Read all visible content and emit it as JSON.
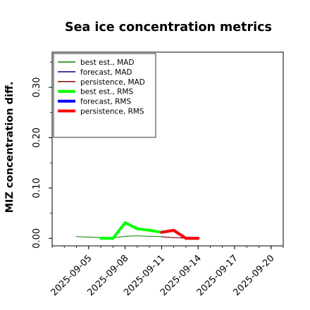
{
  "chart_data": {
    "type": "line",
    "title": "Sea ice concentration metrics",
    "xlabel": "",
    "ylabel": "MIZ concentration diff.",
    "ylim": [
      -0.015,
      0.37
    ],
    "xlim": [
      "2025-09-02",
      "2025-09-21"
    ],
    "x_tick_labels": [
      "2025-09-05",
      "2025-09-08",
      "2025-09-11",
      "2025-09-14",
      "2025-09-17",
      "2025-09-20"
    ],
    "highlighted_x_tick": "2025-09-11",
    "y_ticks": [
      0.0,
      0.1,
      0.2,
      0.3
    ],
    "y_tick_labels": [
      "0.00",
      "0.10",
      "0.20",
      "0.30"
    ],
    "grid": false,
    "legend_position": "top-left",
    "series": [
      {
        "name": "best est., MAD",
        "color": "#008000",
        "linewidth": "thin",
        "x": [
          "2025-09-04",
          "2025-09-05",
          "2025-09-06",
          "2025-09-07",
          "2025-09-08",
          "2025-09-09",
          "2025-09-10",
          "2025-09-11"
        ],
        "y": [
          0.0035,
          0.0025,
          0.0015,
          0.001,
          0.004,
          0.005,
          0.004,
          0.0035
        ]
      },
      {
        "name": "forecast,  MAD",
        "color": "#00008b",
        "linewidth": "thin",
        "x": [
          "2025-09-11",
          "2025-09-12",
          "2025-09-13",
          "2025-09-14"
        ],
        "y": [
          0.003,
          0.0015,
          0.0005,
          0.0003
        ]
      },
      {
        "name": "persistence, MAD",
        "color": "#8b0000",
        "linewidth": "thin",
        "x": [
          "2025-09-11",
          "2025-09-12",
          "2025-09-13",
          "2025-09-14"
        ],
        "y": [
          0.003,
          0.0015,
          0.0005,
          0.0003
        ]
      },
      {
        "name": "best est., RMS",
        "color": "#00ff00",
        "linewidth": "thick",
        "x": [
          "2025-09-06",
          "2025-09-07",
          "2025-09-08",
          "2025-09-09",
          "2025-09-10",
          "2025-09-11"
        ],
        "y": [
          0.0,
          0.0,
          0.031,
          0.019,
          0.016,
          0.012
        ]
      },
      {
        "name": "forecast,  RMS",
        "color": "#0000ff",
        "linewidth": "thick",
        "x": [
          "2025-09-11",
          "2025-09-12",
          "2025-09-13",
          "2025-09-14"
        ],
        "y": [
          0.012,
          0.016,
          0.0,
          0.0
        ]
      },
      {
        "name": "persistence, RMS",
        "color": "#ff0000",
        "linewidth": "thick",
        "x": [
          "2025-09-11",
          "2025-09-12",
          "2025-09-13",
          "2025-09-14"
        ],
        "y": [
          0.012,
          0.016,
          0.0,
          0.0
        ]
      }
    ]
  }
}
